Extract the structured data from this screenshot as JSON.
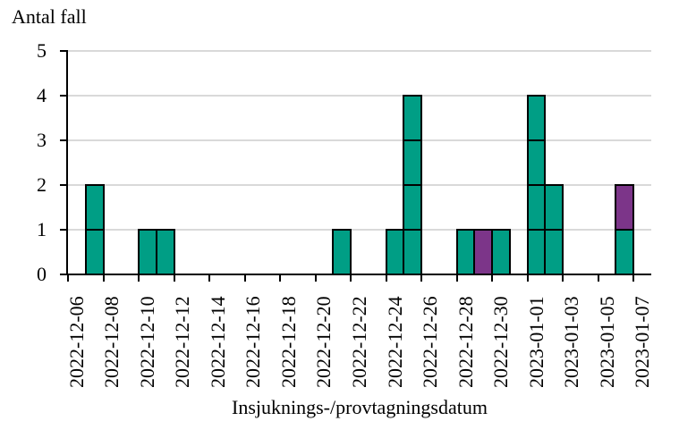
{
  "title": "Antal fall",
  "x_axis": {
    "label": "Insjuknings-/provtagningsdatum",
    "tick_labels": [
      "2022-12-06",
      "2022-12-08",
      "2022-12-10",
      "2022-12-12",
      "2022-12-14",
      "2022-12-16",
      "2022-12-18",
      "2022-12-20",
      "2022-12-22",
      "2022-12-24",
      "2022-12-26",
      "2022-12-28",
      "2022-12-30",
      "2023-01-01",
      "2023-01-03",
      "2023-01-05",
      "2023-01-07"
    ]
  },
  "y_axis": {
    "tick_labels": [
      "0",
      "1",
      "2",
      "3",
      "4",
      "5"
    ]
  },
  "colors": {
    "case": "#009E85",
    "highlight": "#7C3589",
    "gridline": "#D9D9D9",
    "axis": "#000000",
    "background": "#FFFFFF"
  },
  "chart_data": {
    "type": "bar",
    "subtype": "epidemic-curve-stacked-unit-cells",
    "title": "Antal fall",
    "xlabel": "Insjuknings-/provtagningsdatum",
    "ylabel": "Antal fall",
    "ylim": [
      0,
      5
    ],
    "y_ticks": [
      0,
      1,
      2,
      3,
      4,
      5
    ],
    "x_start_date": "2022-12-06",
    "x_end_date": "2023-01-07",
    "x_tick_interval_days": 2,
    "grid": "horizontal-light-gray",
    "legend": "none",
    "bars": [
      {
        "date": "2022-12-07",
        "total": 2,
        "segments": [
          {
            "series": "case",
            "count": 2
          }
        ]
      },
      {
        "date": "2022-12-10",
        "total": 1,
        "segments": [
          {
            "series": "case",
            "count": 1
          }
        ]
      },
      {
        "date": "2022-12-11",
        "total": 1,
        "segments": [
          {
            "series": "case",
            "count": 1
          }
        ]
      },
      {
        "date": "2022-12-21",
        "total": 1,
        "segments": [
          {
            "series": "case",
            "count": 1
          }
        ]
      },
      {
        "date": "2022-12-24",
        "total": 1,
        "segments": [
          {
            "series": "case",
            "count": 1
          }
        ]
      },
      {
        "date": "2022-12-25",
        "total": 4,
        "segments": [
          {
            "series": "case",
            "count": 4
          }
        ]
      },
      {
        "date": "2022-12-28",
        "total": 1,
        "segments": [
          {
            "series": "case",
            "count": 1
          }
        ]
      },
      {
        "date": "2022-12-29",
        "total": 1,
        "segments": [
          {
            "series": "highlight",
            "count": 1
          }
        ]
      },
      {
        "date": "2022-12-30",
        "total": 1,
        "segments": [
          {
            "series": "case",
            "count": 1
          }
        ]
      },
      {
        "date": "2023-01-01",
        "total": 4,
        "segments": [
          {
            "series": "case",
            "count": 4
          }
        ]
      },
      {
        "date": "2023-01-02",
        "total": 2,
        "segments": [
          {
            "series": "case",
            "count": 2
          }
        ]
      },
      {
        "date": "2023-01-06",
        "total": 2,
        "segments": [
          {
            "series": "case",
            "count": 1
          },
          {
            "series": "highlight",
            "count": 1
          }
        ]
      }
    ]
  }
}
